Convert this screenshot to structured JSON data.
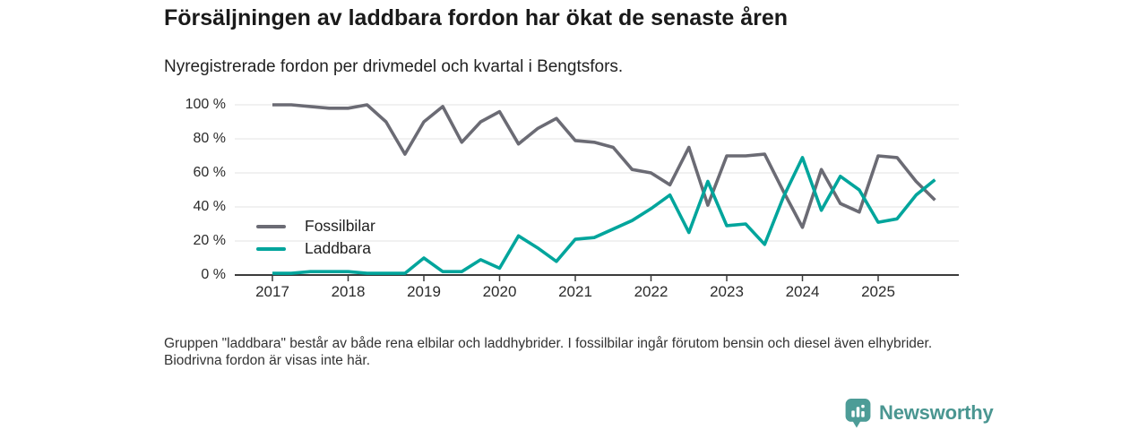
{
  "header": {
    "title": "Försäljningen av laddbara fordon har ökat de senaste åren",
    "subtitle": "Nyregistrerade fordon per drivmedel och kvartal i Bengtsfors."
  },
  "chart_data": {
    "type": "line",
    "unit": "%",
    "x_period": "quarterly",
    "x_start": "2017-Q1",
    "x_end": "2025-Q4",
    "ylim": [
      0,
      100
    ],
    "grid": "horizontal",
    "legend_position": "inside-left",
    "y_ticks": [
      {
        "label": "100 %",
        "value": 100
      },
      {
        "label": "80 %",
        "value": 80
      },
      {
        "label": "60 %",
        "value": 60
      },
      {
        "label": "40 %",
        "value": 40
      },
      {
        "label": "20 %",
        "value": 20
      },
      {
        "label": "0 %",
        "value": 0
      }
    ],
    "x_ticks": [
      {
        "label": "2017",
        "index": 0
      },
      {
        "label": "2018",
        "index": 4
      },
      {
        "label": "2019",
        "index": 8
      },
      {
        "label": "2020",
        "index": 12
      },
      {
        "label": "2021",
        "index": 16
      },
      {
        "label": "2022",
        "index": 20
      },
      {
        "label": "2023",
        "index": 24
      },
      {
        "label": "2024",
        "index": 28
      },
      {
        "label": "2025",
        "index": 32
      }
    ],
    "series": [
      {
        "name": "Fossilbilar",
        "color": "#6b6b74",
        "values": [
          100,
          100,
          99,
          98,
          98,
          100,
          90,
          71,
          90,
          99,
          78,
          90,
          96,
          77,
          86,
          92,
          79,
          78,
          75,
          62,
          60,
          53,
          75,
          41,
          70,
          70,
          71,
          49,
          28,
          62,
          42,
          37,
          70,
          69,
          55,
          44
        ]
      },
      {
        "name": "Laddbara",
        "color": "#00a59c",
        "values": [
          1,
          1,
          2,
          2,
          2,
          1,
          1,
          1,
          10,
          2,
          2,
          9,
          4,
          23,
          16,
          8,
          21,
          22,
          27,
          32,
          39,
          47,
          25,
          55,
          29,
          30,
          18,
          46,
          69,
          38,
          58,
          50,
          31,
          33,
          47,
          56
        ]
      }
    ],
    "axis_color": "#3b3b3b",
    "gridline_color": "#e3e3e3"
  },
  "footnote": {
    "text": "Gruppen \"laddbara\" består av både rena elbilar och laddhybrider. I fossilbilar ingår förutom bensin och diesel även elhybrider. Biodrivna fordon är visas inte här."
  },
  "brand": {
    "name": "Newsworthy",
    "color": "#4a9691",
    "icon": "bar-chart-speech-bubble"
  }
}
